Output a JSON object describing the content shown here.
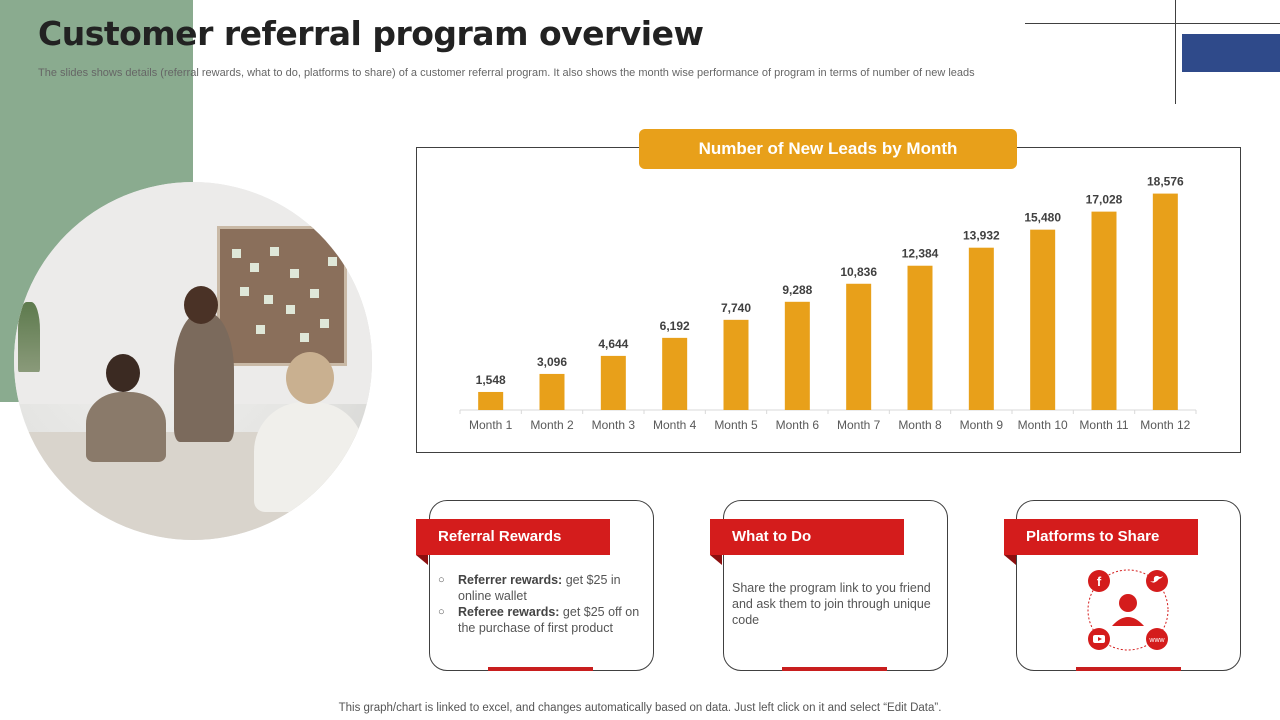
{
  "title": "Customer referral program overview",
  "subtitle": "The slides shows details (referral rewards, what to do, platforms to share) of a customer referral program. It also shows the month wise performance of program in terms of number of new leads",
  "chart_data": {
    "type": "bar",
    "title": "Number of New Leads by Month",
    "categories": [
      "Month 1",
      "Month 2",
      "Month 3",
      "Month 4",
      "Month 5",
      "Month 6",
      "Month 7",
      "Month 8",
      "Month 9",
      "Month 10",
      "Month 11",
      "Month 12"
    ],
    "values": [
      1548,
      3096,
      4644,
      6192,
      7740,
      9288,
      10836,
      12384,
      13932,
      15480,
      17028,
      18576
    ],
    "value_labels": [
      "1,548",
      "3,096",
      "4,644",
      "6,192",
      "7,740",
      "9,288",
      "10,836",
      "12,384",
      "13,932",
      "15,480",
      "17,028",
      "18,576"
    ],
    "ylim": [
      0,
      20000
    ],
    "grid": false,
    "color": "#e8a01a"
  },
  "cards": {
    "referral_rewards": {
      "heading": "Referral Rewards",
      "item1_bold": "Referrer rewards:",
      "item1_rest": " get $25 in online wallet",
      "item2_bold": "Referee rewards:",
      "item2_rest": " get $25 off on the purchase of first product"
    },
    "what_to_do": {
      "heading": "What to Do",
      "text": "Share the program link to you friend and ask them to join through unique code"
    },
    "platforms": {
      "heading": "Platforms to Share",
      "icons": [
        "facebook-icon",
        "twitter-icon",
        "youtube-icon",
        "www-icon",
        "user-icon"
      ],
      "www_label": "www"
    }
  },
  "footer": "This graph/chart is linked to excel,  and changes automatically based on data. Just left click on it and select “Edit Data”.",
  "colors": {
    "accent_orange": "#e8a01a",
    "accent_red": "#d41c1c",
    "green_panel": "#8aab8f",
    "blue_block": "#2f4a8a"
  }
}
